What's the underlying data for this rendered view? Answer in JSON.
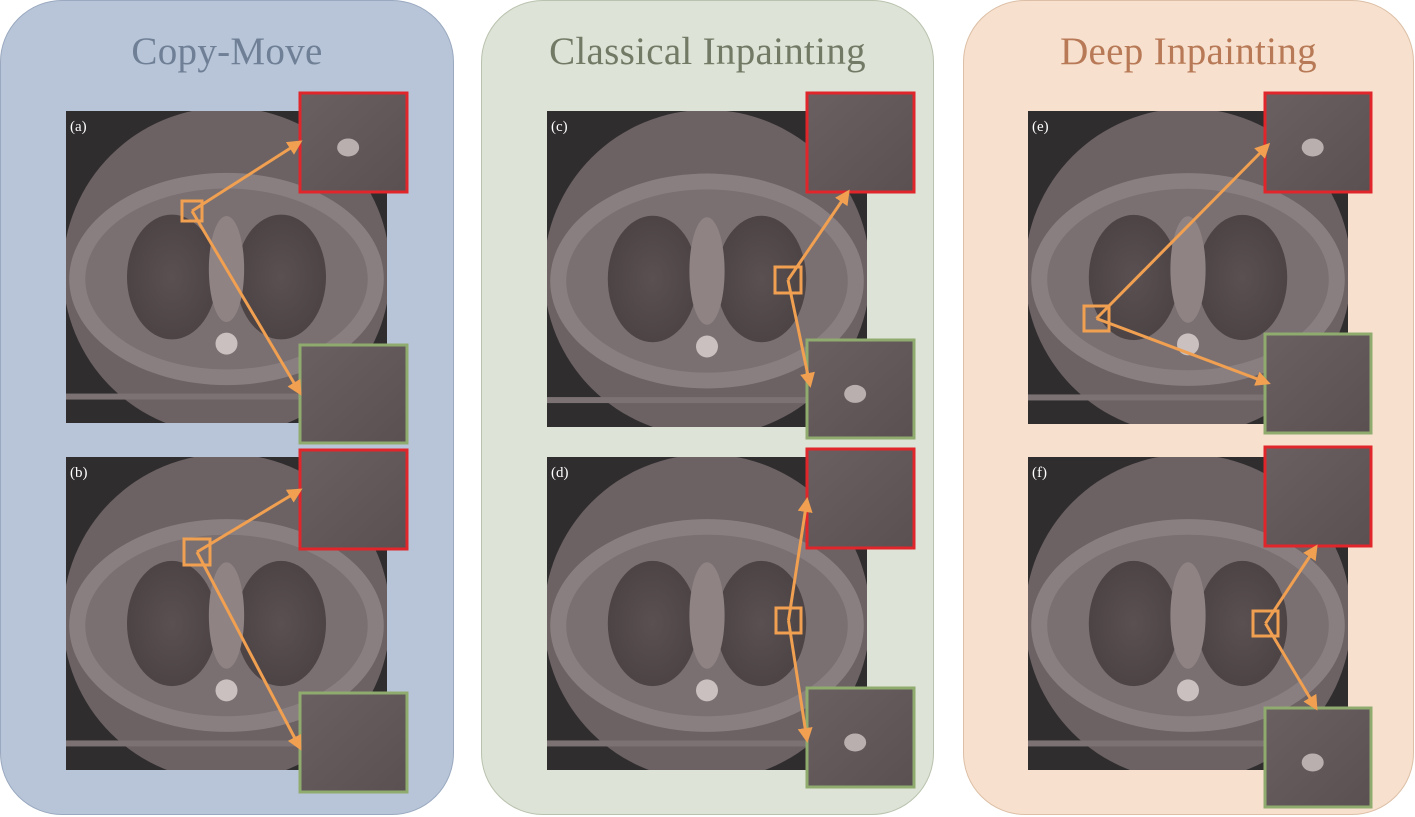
{
  "panels": [
    {
      "title": "Copy-Move",
      "labels": [
        "(a)",
        "(b)"
      ]
    },
    {
      "title": "Classical Inpainting",
      "labels": [
        "(c)",
        "(d)"
      ]
    },
    {
      "title": "Deep Inpainting",
      "labels": [
        "(e)",
        "(f)"
      ]
    }
  ],
  "colors": {
    "copy_move_panel": "#b8c5d8",
    "classical_panel": "#dde3d6",
    "deep_panel": "#f7e0cd",
    "arrow": "#f0a050",
    "tampered_box": "#e0262b",
    "original_box": "#8fab6e",
    "scan_background": "#2f2d2e"
  }
}
